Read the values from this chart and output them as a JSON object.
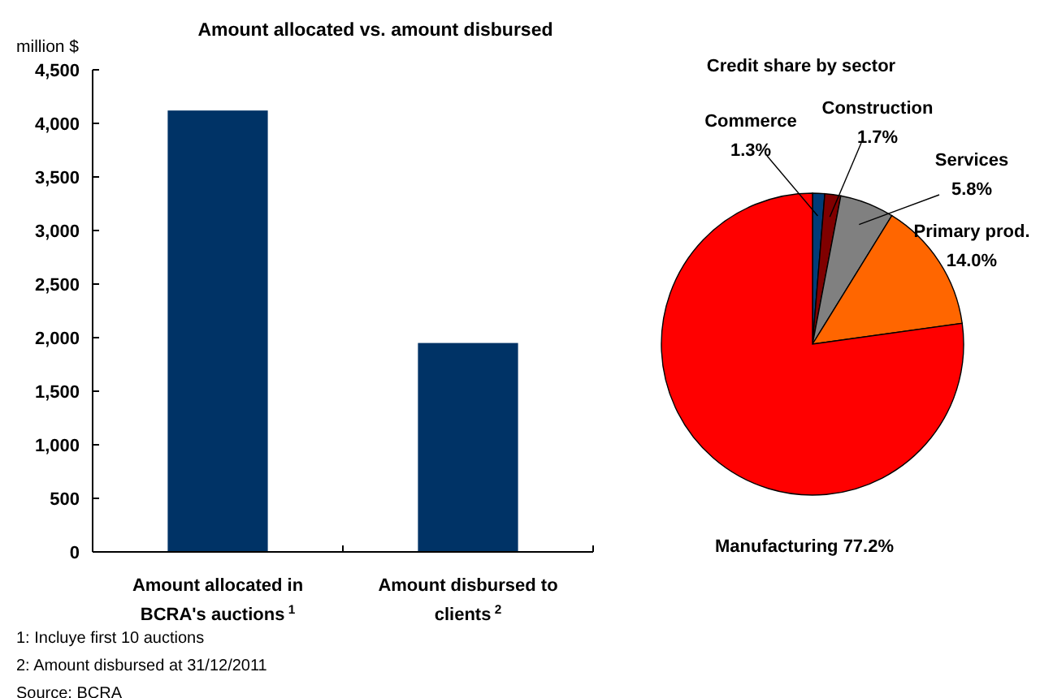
{
  "chart_data": [
    {
      "type": "bar",
      "title": "Amount allocated vs. amount disbursed",
      "ylabel": "million $",
      "categories": [
        "Amount allocated in BCRA's auctions$^{1}$",
        "Amount disbursed to clients$^{2}$"
      ],
      "values": [
        4120,
        1950
      ],
      "color": "#003366",
      "ylim": [
        0,
        4500
      ],
      "yticks": [
        {
          "value": 0,
          "label": "0"
        },
        {
          "value": 500,
          "label": "500"
        },
        {
          "value": 1000,
          "label": "1,000"
        },
        {
          "value": 1500,
          "label": "1,500"
        },
        {
          "value": 2000,
          "label": "2,000"
        },
        {
          "value": 2500,
          "label": "2,500"
        },
        {
          "value": 3000,
          "label": "3,000"
        },
        {
          "value": 3500,
          "label": "3,500"
        },
        {
          "value": 4000,
          "label": "4,000"
        },
        {
          "value": 4500,
          "label": "4,500"
        }
      ],
      "annotations": [
        "1: Incluye first 10 auctions",
        "2: Amount disbursed at 31/12/2011",
        "Source: BCRA"
      ]
    },
    {
      "type": "pie",
      "title": "Credit share by sector",
      "categories": [
        "Commerce",
        "Construction",
        "Services",
        "Primary prod.",
        "Manufacturing"
      ],
      "values": [
        1.3,
        1.7,
        5.8,
        14.0,
        77.2
      ],
      "value_labels": [
        "1.3%",
        "1.7%",
        "5.8%",
        "14.0%",
        "77.2%"
      ],
      "colors": [
        "#003c78",
        "#800000",
        "#808080",
        "#ff6600",
        "#ff0000"
      ]
    }
  ]
}
